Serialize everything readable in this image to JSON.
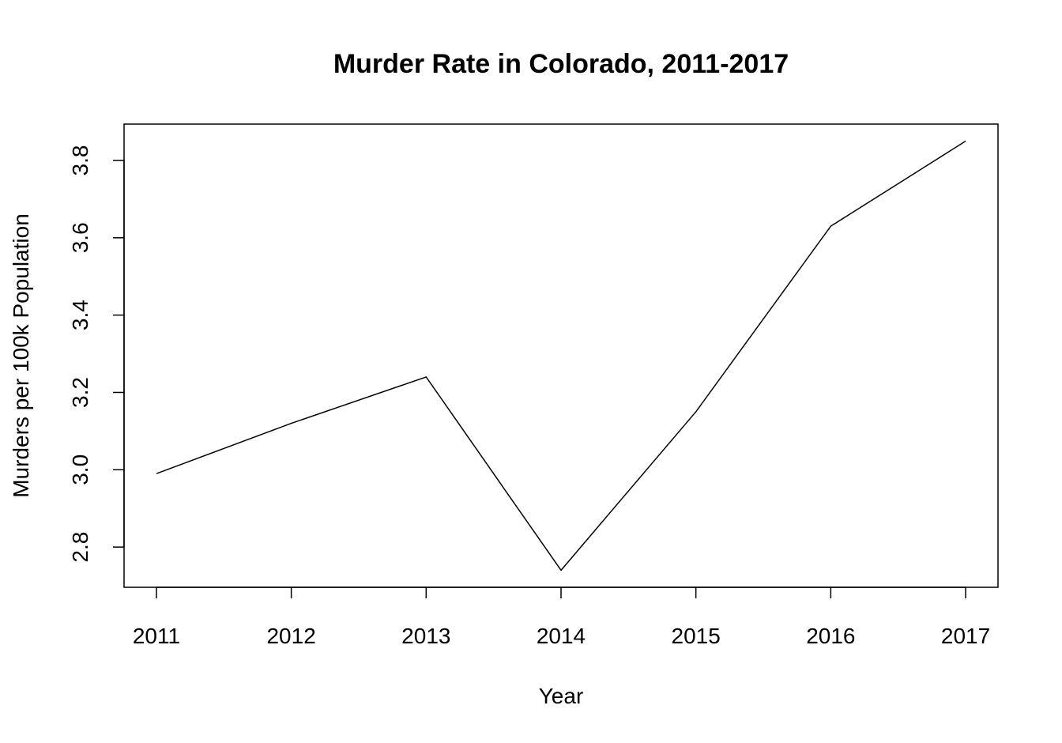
{
  "chart_data": {
    "type": "line",
    "title": "Murder Rate in Colorado, 2011-2017",
    "xlabel": "Year",
    "ylabel": "Murders per 100k Population",
    "x": [
      2011,
      2012,
      2013,
      2014,
      2015,
      2016,
      2017
    ],
    "series": [
      {
        "values": [
          2.99,
          3.12,
          3.24,
          2.74,
          3.15,
          3.63,
          3.85
        ]
      }
    ],
    "xticks": [
      2011,
      2012,
      2013,
      2014,
      2015,
      2016,
      2017
    ],
    "xtick_labels": [
      "2011",
      "2012",
      "2013",
      "2014",
      "2015",
      "2016",
      "2017"
    ],
    "yticks": [
      2.8,
      3.0,
      3.2,
      3.4,
      3.6,
      3.8
    ],
    "ytick_labels": [
      "2.8",
      "3.0",
      "3.2",
      "3.4",
      "3.6",
      "3.8"
    ],
    "xlim": [
      2010.76,
      2017.24
    ],
    "ylim": [
      2.696,
      3.894
    ],
    "grid": false,
    "legend": "none",
    "line_color": "#000000"
  }
}
